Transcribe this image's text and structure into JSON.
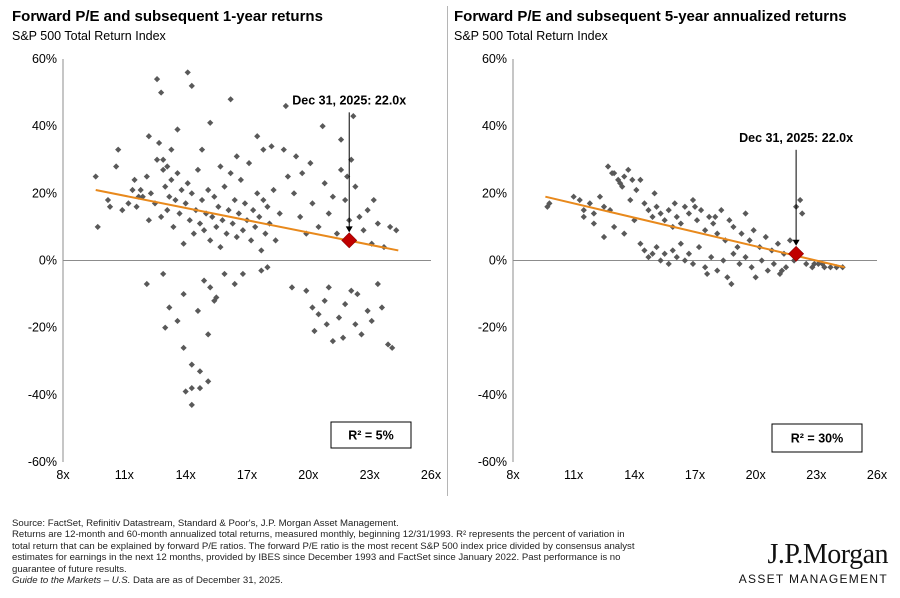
{
  "footnote": {
    "source": "Source: FactSet, Refinitiv Datastream, Standard & Poor's, J.P. Morgan Asset Management.",
    "line1": "Returns are 12-month and 60-month annualized total returns, measured monthly, beginning 12/31/1993. R² represents the percent of variation in",
    "line2": "total return that can be explained by forward P/E ratios. The forward P/E ratio is the most recent S&P 500 index price divided by consensus analyst",
    "line3": "estimates for earnings in the next 12 months, provided by IBES since December 1993 and FactSet since January 2022. Past performance is no",
    "line4": "guarantee of future results.",
    "guide_title": "Guide to the Markets – U.S.",
    "guide_rest": " Data are as of December 31, 2025."
  },
  "logo": {
    "name": "J.P.Morgan",
    "sub": "ASSET MANAGEMENT"
  },
  "chart_data": [
    {
      "type": "scatter",
      "title": "Forward P/E and subsequent 1-year returns",
      "subtitle": "S&P 500 Total Return Index",
      "xlabel": "",
      "ylabel": "",
      "xlim": [
        8,
        26
      ],
      "ylim": [
        -60,
        60
      ],
      "x_ticks": [
        8,
        11,
        14,
        17,
        20,
        23,
        26
      ],
      "x_tick_labels": [
        "8x",
        "11x",
        "14x",
        "17x",
        "20x",
        "23x",
        "26x"
      ],
      "y_ticks": [
        60,
        40,
        20,
        0,
        -20,
        -40,
        -60
      ],
      "y_tick_labels": [
        "60%",
        "40%",
        "20%",
        "0%",
        "-20%",
        "-40%",
        "-60%"
      ],
      "grid": false,
      "point_color": "#595959",
      "trend_color": "#E8891C",
      "highlight_color": "#C00000",
      "trendline": [
        [
          9.6,
          21
        ],
        [
          24.4,
          3
        ]
      ],
      "highlight": {
        "x": 22.0,
        "y": 6
      },
      "annotation": "Dec 31, 2025:  22.0x",
      "r_squared_label": "R²  = 5%",
      "points": [
        [
          9.6,
          25
        ],
        [
          9.7,
          10
        ],
        [
          10.3,
          16
        ],
        [
          10.6,
          28
        ],
        [
          10.7,
          33
        ],
        [
          10.9,
          15
        ],
        [
          11.2,
          17
        ],
        [
          11.4,
          21
        ],
        [
          11.5,
          24
        ],
        [
          11.6,
          16
        ],
        [
          11.8,
          21
        ],
        [
          11.9,
          19
        ],
        [
          12.1,
          25
        ],
        [
          12.2,
          12
        ],
        [
          12.3,
          20
        ],
        [
          12.5,
          17
        ],
        [
          12.6,
          30
        ],
        [
          12.7,
          35
        ],
        [
          12.8,
          13
        ],
        [
          12.9,
          27
        ],
        [
          13.0,
          22
        ],
        [
          13.1,
          15
        ],
        [
          13.2,
          19
        ],
        [
          13.3,
          24
        ],
        [
          13.4,
          10
        ],
        [
          13.5,
          18
        ],
        [
          13.6,
          26
        ],
        [
          13.7,
          14
        ],
        [
          13.8,
          21
        ],
        [
          13.9,
          5
        ],
        [
          14.0,
          17
        ],
        [
          14.1,
          23
        ],
        [
          14.2,
          12
        ],
        [
          14.3,
          20
        ],
        [
          14.4,
          8
        ],
        [
          14.5,
          15
        ],
        [
          14.6,
          27
        ],
        [
          14.7,
          11
        ],
        [
          14.8,
          18
        ],
        [
          14.9,
          9
        ],
        [
          15.0,
          14
        ],
        [
          15.1,
          21
        ],
        [
          15.2,
          6
        ],
        [
          15.3,
          13
        ],
        [
          15.4,
          19
        ],
        [
          15.5,
          10
        ],
        [
          15.6,
          16
        ],
        [
          15.7,
          4
        ],
        [
          15.8,
          12
        ],
        [
          15.9,
          22
        ],
        [
          16.0,
          8
        ],
        [
          16.1,
          15
        ],
        [
          16.2,
          26
        ],
        [
          16.3,
          11
        ],
        [
          16.4,
          18
        ],
        [
          16.5,
          7
        ],
        [
          16.6,
          14
        ],
        [
          16.7,
          24
        ],
        [
          16.8,
          9
        ],
        [
          16.9,
          17
        ],
        [
          17.0,
          12
        ],
        [
          17.1,
          29
        ],
        [
          17.2,
          6
        ],
        [
          17.3,
          15
        ],
        [
          17.4,
          10
        ],
        [
          17.5,
          20
        ],
        [
          17.6,
          13
        ],
        [
          17.7,
          3
        ],
        [
          17.8,
          18
        ],
        [
          17.9,
          8
        ],
        [
          18.0,
          16
        ],
        [
          18.1,
          11
        ],
        [
          18.3,
          21
        ],
        [
          18.4,
          6
        ],
        [
          18.6,
          14
        ],
        [
          18.8,
          33
        ],
        [
          19.0,
          25
        ],
        [
          19.3,
          20
        ],
        [
          19.6,
          13
        ],
        [
          19.9,
          8
        ],
        [
          20.2,
          17
        ],
        [
          20.5,
          10
        ],
        [
          20.8,
          23
        ],
        [
          21.0,
          14
        ],
        [
          21.2,
          19
        ],
        [
          21.4,
          8
        ],
        [
          21.6,
          27
        ],
        [
          21.8,
          18
        ],
        [
          22.0,
          12
        ],
        [
          22.2,
          43
        ],
        [
          22.3,
          22
        ],
        [
          22.5,
          13
        ],
        [
          22.7,
          9
        ],
        [
          22.9,
          15
        ],
        [
          23.1,
          5
        ],
        [
          23.4,
          11
        ],
        [
          23.7,
          4
        ],
        [
          24.0,
          10
        ],
        [
          24.3,
          9
        ],
        [
          12.6,
          54
        ],
        [
          12.8,
          50
        ],
        [
          14.1,
          56
        ],
        [
          14.3,
          52
        ],
        [
          13.6,
          39
        ],
        [
          15.2,
          41
        ],
        [
          16.2,
          48
        ],
        [
          18.9,
          46
        ],
        [
          20.7,
          40
        ],
        [
          12.2,
          37
        ],
        [
          13.3,
          33
        ],
        [
          17.5,
          37
        ],
        [
          19.4,
          31
        ],
        [
          21.6,
          36
        ],
        [
          22.1,
          30
        ],
        [
          12.9,
          30
        ],
        [
          14.8,
          33
        ],
        [
          16.5,
          31
        ],
        [
          18.2,
          34
        ],
        [
          20.1,
          29
        ],
        [
          23.2,
          18
        ],
        [
          21.9,
          25
        ],
        [
          15.7,
          28
        ],
        [
          13.1,
          28
        ],
        [
          11.7,
          19
        ],
        [
          10.2,
          18
        ],
        [
          17.8,
          33
        ],
        [
          19.7,
          26
        ],
        [
          13.0,
          -20
        ],
        [
          13.6,
          -18
        ],
        [
          13.9,
          -26
        ],
        [
          14.3,
          -31
        ],
        [
          14.7,
          -33
        ],
        [
          14.3,
          -38
        ],
        [
          14.7,
          -38
        ],
        [
          14.3,
          -43
        ],
        [
          15.1,
          -36
        ],
        [
          14.0,
          -39
        ],
        [
          13.2,
          -14
        ],
        [
          13.9,
          -10
        ],
        [
          14.6,
          -15
        ],
        [
          15.1,
          -22
        ],
        [
          15.5,
          -11
        ],
        [
          15.4,
          -12
        ],
        [
          14.9,
          -6
        ],
        [
          16.4,
          -7
        ],
        [
          15.9,
          -4
        ],
        [
          17.7,
          -3
        ],
        [
          18.0,
          -2
        ],
        [
          12.1,
          -7
        ],
        [
          12.9,
          -4
        ],
        [
          15.2,
          -8
        ],
        [
          16.8,
          -4
        ],
        [
          19.2,
          -8
        ],
        [
          19.9,
          -9
        ],
        [
          20.2,
          -14
        ],
        [
          20.5,
          -16
        ],
        [
          20.9,
          -19
        ],
        [
          20.3,
          -21
        ],
        [
          21.2,
          -24
        ],
        [
          21.7,
          -23
        ],
        [
          22.3,
          -19
        ],
        [
          22.6,
          -22
        ],
        [
          23.1,
          -18
        ],
        [
          23.6,
          -14
        ],
        [
          23.9,
          -25
        ],
        [
          24.1,
          -26
        ],
        [
          22.4,
          -10
        ],
        [
          21.0,
          -8
        ],
        [
          21.8,
          -13
        ],
        [
          22.1,
          -9
        ],
        [
          23.4,
          -7
        ],
        [
          20.8,
          -12
        ],
        [
          21.5,
          -17
        ],
        [
          22.9,
          -15
        ]
      ]
    },
    {
      "type": "scatter",
      "title": "Forward P/E and subsequent 5-year annualized returns",
      "subtitle": "S&P 500 Total Return Index",
      "xlabel": "",
      "ylabel": "",
      "xlim": [
        8,
        26
      ],
      "ylim": [
        -60,
        60
      ],
      "x_ticks": [
        8,
        11,
        14,
        17,
        20,
        23,
        26
      ],
      "x_tick_labels": [
        "8x",
        "11x",
        "14x",
        "17x",
        "20x",
        "23x",
        "26x"
      ],
      "y_ticks": [
        60,
        40,
        20,
        0,
        -20,
        -40,
        -60
      ],
      "y_tick_labels": [
        "60%",
        "40%",
        "20%",
        "0%",
        "-20%",
        "-40%",
        "-60%"
      ],
      "grid": false,
      "point_color": "#595959",
      "trend_color": "#E8891C",
      "highlight_color": "#C00000",
      "trendline": [
        [
          9.6,
          19
        ],
        [
          24.4,
          -2
        ]
      ],
      "highlight": {
        "x": 22.0,
        "y": 2
      },
      "annotation": "Dec 31, 2025:  22.0x",
      "r_squared_label": "R²  = 30%",
      "points": [
        [
          9.7,
          16
        ],
        [
          9.8,
          17
        ],
        [
          11.0,
          19
        ],
        [
          11.3,
          18
        ],
        [
          11.5,
          15
        ],
        [
          11.8,
          17
        ],
        [
          12.0,
          14
        ],
        [
          12.3,
          19
        ],
        [
          12.5,
          16
        ],
        [
          12.7,
          28
        ],
        [
          13.0,
          26
        ],
        [
          13.2,
          24
        ],
        [
          13.4,
          22
        ],
        [
          13.5,
          25
        ],
        [
          13.7,
          27
        ],
        [
          13.9,
          24
        ],
        [
          12.9,
          26
        ],
        [
          13.3,
          23
        ],
        [
          14.1,
          21
        ],
        [
          14.3,
          24
        ],
        [
          14.5,
          17
        ],
        [
          14.7,
          15
        ],
        [
          14.9,
          13
        ],
        [
          15.1,
          16
        ],
        [
          15.3,
          14
        ],
        [
          15.5,
          12
        ],
        [
          15.7,
          15
        ],
        [
          15.9,
          10
        ],
        [
          16.1,
          13
        ],
        [
          16.3,
          11
        ],
        [
          16.5,
          16
        ],
        [
          16.7,
          14
        ],
        [
          16.9,
          18
        ],
        [
          17.1,
          12
        ],
        [
          17.3,
          15
        ],
        [
          17.5,
          9
        ],
        [
          17.7,
          13
        ],
        [
          17.9,
          11
        ],
        [
          18.1,
          8
        ],
        [
          18.3,
          15
        ],
        [
          18.5,
          6
        ],
        [
          18.7,
          12
        ],
        [
          18.9,
          10
        ],
        [
          19.1,
          4
        ],
        [
          19.3,
          8
        ],
        [
          19.5,
          14
        ],
        [
          19.7,
          6
        ],
        [
          19.9,
          9
        ],
        [
          20.2,
          4
        ],
        [
          20.5,
          7
        ],
        [
          20.8,
          3
        ],
        [
          21.1,
          5
        ],
        [
          21.4,
          2
        ],
        [
          21.7,
          6
        ],
        [
          22.0,
          16
        ],
        [
          22.2,
          18
        ],
        [
          22.3,
          14
        ],
        [
          22.5,
          -1
        ],
        [
          22.8,
          -2
        ],
        [
          23.1,
          -1
        ],
        [
          23.4,
          -2
        ],
        [
          23.7,
          -2
        ],
        [
          24.0,
          -2
        ],
        [
          24.3,
          -2
        ],
        [
          22.9,
          -1
        ],
        [
          23.3,
          -1
        ],
        [
          14.3,
          5
        ],
        [
          14.5,
          3
        ],
        [
          14.7,
          1
        ],
        [
          14.9,
          2
        ],
        [
          15.1,
          4
        ],
        [
          15.3,
          0
        ],
        [
          15.5,
          2
        ],
        [
          15.7,
          -1
        ],
        [
          15.9,
          3
        ],
        [
          16.1,
          1
        ],
        [
          16.3,
          5
        ],
        [
          16.5,
          0
        ],
        [
          16.7,
          2
        ],
        [
          16.9,
          -1
        ],
        [
          17.2,
          4
        ],
        [
          17.5,
          -2
        ],
        [
          17.8,
          1
        ],
        [
          18.1,
          -3
        ],
        [
          18.4,
          0
        ],
        [
          18.6,
          -5
        ],
        [
          18.9,
          2
        ],
        [
          19.2,
          -1
        ],
        [
          19.5,
          1
        ],
        [
          19.8,
          -2
        ],
        [
          20.3,
          0
        ],
        [
          20.6,
          -3
        ],
        [
          20.9,
          -1
        ],
        [
          21.2,
          -4
        ],
        [
          21.5,
          -2
        ],
        [
          21.9,
          0
        ],
        [
          12.5,
          7
        ],
        [
          13.0,
          10
        ],
        [
          13.5,
          8
        ],
        [
          14.0,
          12
        ],
        [
          12.0,
          11
        ],
        [
          11.5,
          13
        ],
        [
          12.8,
          15
        ],
        [
          13.8,
          18
        ],
        [
          15.0,
          20
        ],
        [
          16.0,
          17
        ],
        [
          17.0,
          16
        ],
        [
          18.0,
          13
        ],
        [
          17.6,
          -4
        ],
        [
          18.8,
          -7
        ],
        [
          20.0,
          -5
        ],
        [
          21.3,
          -3
        ]
      ]
    }
  ]
}
